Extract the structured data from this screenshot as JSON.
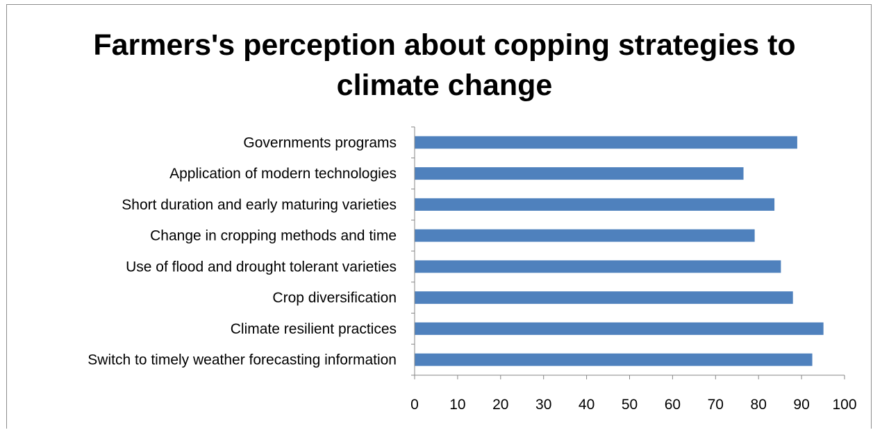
{
  "chart_data": {
    "type": "bar",
    "orientation": "horizontal",
    "title": "Farmers's perception about copping strategies to climate change",
    "xlabel": "",
    "ylabel": "",
    "categories": [
      "Governments programs",
      "Application of modern technologies",
      "Short duration and early maturing varieties",
      "Change in cropping methods and time",
      "Use of flood and drought tolerant varieties",
      "Crop diversification",
      "Climate resilient practices",
      "Switch to timely weather forecasting information"
    ],
    "values": [
      89,
      76.5,
      83.7,
      79.1,
      85.2,
      88,
      95.1,
      92.5
    ],
    "xlim": [
      0,
      100
    ],
    "xticks": [
      "0",
      "10",
      "20",
      "30",
      "40",
      "50",
      "60",
      "70",
      "80",
      "90",
      "100"
    ],
    "bar_color": "#4F81BD",
    "grid": false,
    "legend": "none"
  }
}
